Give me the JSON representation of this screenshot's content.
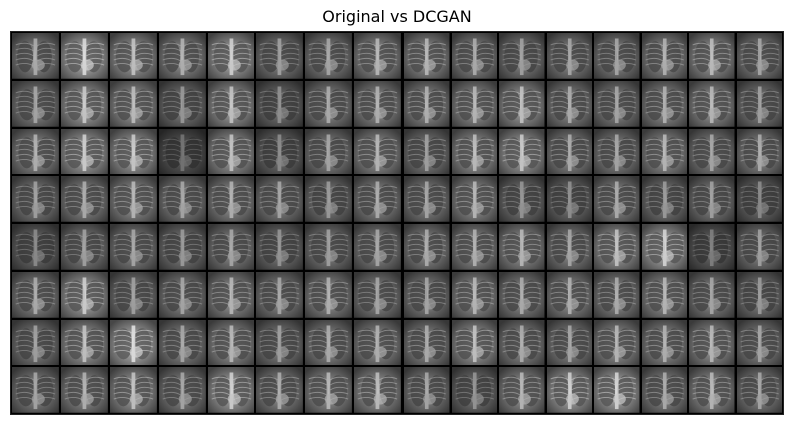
{
  "title": "Original vs DCGAN",
  "left_panel": {
    "rows": 8,
    "cols": 8,
    "brightness": [
      [
        0.62,
        0.78,
        0.7,
        0.64,
        0.74,
        0.58,
        0.6,
        0.66
      ],
      [
        0.6,
        0.72,
        0.68,
        0.55,
        0.7,
        0.52,
        0.62,
        0.64
      ],
      [
        0.64,
        0.74,
        0.72,
        0.42,
        0.7,
        0.5,
        0.6,
        0.66
      ],
      [
        0.58,
        0.62,
        0.66,
        0.6,
        0.64,
        0.6,
        0.56,
        0.62
      ],
      [
        0.5,
        0.58,
        0.6,
        0.56,
        0.6,
        0.54,
        0.58,
        0.6
      ],
      [
        0.62,
        0.74,
        0.58,
        0.6,
        0.66,
        0.6,
        0.64,
        0.6
      ],
      [
        0.58,
        0.7,
        0.8,
        0.6,
        0.66,
        0.58,
        0.62,
        0.64
      ],
      [
        0.6,
        0.64,
        0.7,
        0.6,
        0.74,
        0.62,
        0.66,
        0.68
      ]
    ]
  },
  "right_panel": {
    "rows": 8,
    "cols": 8,
    "brightness": [
      [
        0.66,
        0.62,
        0.58,
        0.6,
        0.6,
        0.64,
        0.68,
        0.6
      ],
      [
        0.64,
        0.66,
        0.7,
        0.62,
        0.6,
        0.64,
        0.66,
        0.58
      ],
      [
        0.58,
        0.68,
        0.72,
        0.62,
        0.6,
        0.66,
        0.6,
        0.62
      ],
      [
        0.6,
        0.66,
        0.54,
        0.52,
        0.62,
        0.56,
        0.58,
        0.5
      ],
      [
        0.62,
        0.64,
        0.66,
        0.6,
        0.7,
        0.76,
        0.46,
        0.58
      ],
      [
        0.6,
        0.66,
        0.62,
        0.64,
        0.62,
        0.66,
        0.6,
        0.56
      ],
      [
        0.62,
        0.7,
        0.62,
        0.6,
        0.66,
        0.64,
        0.66,
        0.6
      ],
      [
        0.6,
        0.54,
        0.66,
        0.74,
        0.76,
        0.62,
        0.66,
        0.6
      ]
    ]
  }
}
